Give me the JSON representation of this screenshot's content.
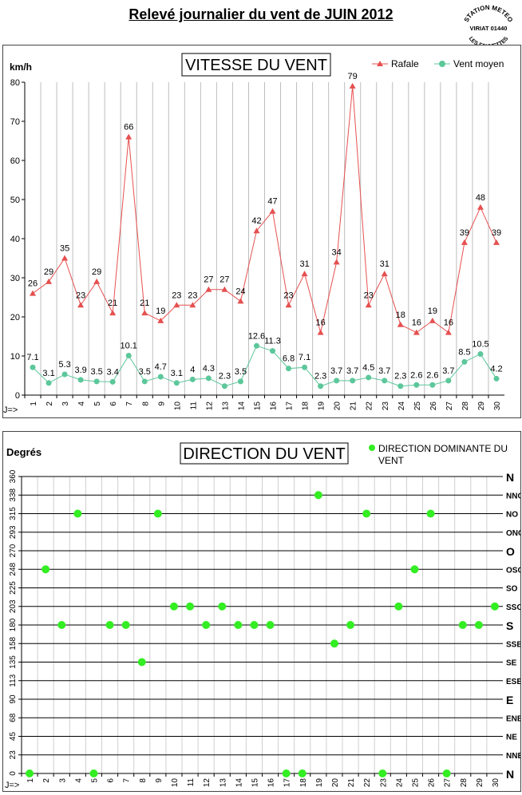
{
  "page": {
    "title": "Relevé journalier du vent de JUIN 2012"
  },
  "seal": {
    "line1": "STATION METEO",
    "line2": "VIRIAT 01440",
    "line3": "LES FAUVETTES"
  },
  "speed_chart": {
    "title": "VITESSE DU VENT",
    "unit_label": "km/h",
    "x_prefix": "J=>",
    "legend": {
      "gust": "Rafale",
      "mean": "Vent moyen"
    }
  },
  "direction_chart": {
    "title": "DIRECTION DU VENT",
    "unit_label": "Degrés",
    "x_prefix": "J=>",
    "legend": {
      "line1": "DIRECTION DOMINANTE DU",
      "line2": "VENT"
    }
  },
  "chart_data": [
    {
      "type": "line",
      "title": "VITESSE DU VENT",
      "ylabel": "km/h",
      "xlabel": "J=>",
      "ylim": [
        0,
        80
      ],
      "yticks": [
        0,
        10,
        20,
        30,
        40,
        50,
        60,
        70,
        80
      ],
      "grid": true,
      "legend_position": "top-right",
      "x": [
        1,
        2,
        3,
        4,
        5,
        6,
        7,
        8,
        9,
        10,
        11,
        12,
        13,
        14,
        15,
        16,
        17,
        18,
        19,
        20,
        21,
        22,
        23,
        24,
        25,
        26,
        27,
        28,
        29,
        30
      ],
      "series": [
        {
          "name": "Rafale",
          "color": "#e65050",
          "values": [
            26,
            29,
            35,
            23,
            29,
            21,
            66,
            21,
            19,
            23,
            23,
            27,
            27,
            24,
            42,
            47,
            23,
            31,
            16,
            34,
            79,
            23,
            31,
            18,
            16,
            19,
            16,
            39,
            48,
            39
          ],
          "labels": [
            "26",
            "29",
            "35",
            "23",
            "29",
            "21",
            "66",
            "21",
            "19",
            "23",
            "23",
            "27",
            "27",
            "24",
            "42",
            "47",
            "23",
            "31",
            "16",
            "34",
            "79",
            "23",
            "31",
            "18",
            "16",
            "19",
            "16",
            "39",
            "48",
            "39"
          ]
        },
        {
          "name": "Vent moyen",
          "color": "#5cc79a",
          "values": [
            7.1,
            3.1,
            5.3,
            3.9,
            3.5,
            3.4,
            10.1,
            3.5,
            4.7,
            3.1,
            4,
            4.3,
            2.3,
            3.5,
            12.6,
            11.3,
            6.8,
            7.1,
            2.3,
            3.7,
            3.7,
            4.5,
            3.7,
            2.3,
            2.6,
            2.6,
            3.7,
            8.5,
            10.5,
            4.2
          ],
          "labels": [
            "7.1",
            "3.1",
            "5.3",
            "3.9",
            "3.5",
            "3.4",
            "10.1",
            "3.5",
            "4.7",
            "3.1",
            "4",
            "4.3",
            "2.3",
            "3.5",
            "12.6",
            "11.3",
            "6.8",
            "7.1",
            "2.3",
            "3.7",
            "3.7",
            "4.5",
            "3.7",
            "2.3",
            "2.6",
            "2.6",
            "3.7",
            "8.5",
            "10.5",
            "4.2"
          ]
        }
      ]
    },
    {
      "type": "scatter",
      "title": "DIRECTION DU VENT",
      "ylabel": "Degrés",
      "xlabel": "J=>",
      "ylim": [
        0,
        360
      ],
      "yticks": [
        0,
        23,
        45,
        68,
        90,
        113,
        135,
        158,
        180,
        203,
        225,
        248,
        270,
        293,
        315,
        338,
        360
      ],
      "yticks_values": [
        0,
        22.5,
        45,
        67.5,
        90,
        112.5,
        135,
        157.5,
        180,
        202.5,
        225,
        247.5,
        270,
        292.5,
        315,
        337.5,
        360
      ],
      "compass_labels": [
        "N",
        "NNE",
        "NE",
        "ENE",
        "E",
        "ESE",
        "SE",
        "SSE",
        "S",
        "SSO",
        "SO",
        "OSO",
        "O",
        "ONO",
        "NO",
        "NNO",
        "N"
      ],
      "grid": true,
      "legend_position": "top-right",
      "x": [
        1,
        2,
        3,
        4,
        5,
        6,
        7,
        8,
        9,
        10,
        11,
        12,
        13,
        14,
        15,
        16,
        17,
        18,
        19,
        20,
        21,
        22,
        23,
        24,
        25,
        26,
        27,
        28,
        29,
        30
      ],
      "series": [
        {
          "name": "DIRECTION DOMINANTE DU VENT",
          "color": "#33ee22",
          "values": [
            0,
            247.5,
            180,
            315,
            0,
            180,
            180,
            135,
            315,
            202.5,
            202.5,
            180,
            202.5,
            180,
            180,
            180,
            0,
            0,
            337.5,
            157.5,
            180,
            315,
            0,
            202.5,
            247.5,
            315,
            0,
            180,
            180,
            202.5
          ]
        }
      ]
    }
  ]
}
